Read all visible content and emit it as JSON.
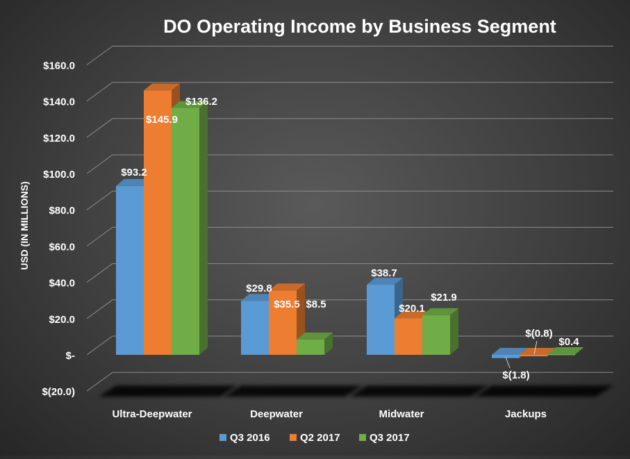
{
  "chart_data": {
    "type": "bar",
    "title": "DO Operating Income by Business Segment",
    "ylabel": "USD (IN MILLIONS)",
    "xlabel": "",
    "categories": [
      "Ultra-Deepwater",
      "Deepwater",
      "Midwater",
      "Jackups"
    ],
    "series": [
      {
        "name": "Q3 2016",
        "color": "#5b9bd5",
        "values": [
          93.2,
          29.8,
          38.7,
          -1.8
        ],
        "labels": [
          "$93.2",
          "$29.8",
          "$38.7",
          "$(1.8)"
        ]
      },
      {
        "name": "Q2 2017",
        "color": "#ed7d31",
        "values": [
          145.9,
          35.5,
          20.1,
          -0.8
        ],
        "labels": [
          "$145.9",
          "$35.5",
          "$20.1",
          "$(0.8)"
        ]
      },
      {
        "name": "Q3 2017",
        "color": "#70ad47",
        "values": [
          136.2,
          8.5,
          21.9,
          0.4
        ],
        "labels": [
          "$136.2",
          "$8.5",
          "$21.9",
          "$0.4"
        ]
      }
    ],
    "ylim": [
      -20,
      160
    ],
    "yticks": [
      {
        "value": 160,
        "label": "$160.0"
      },
      {
        "value": 140,
        "label": "$140.0"
      },
      {
        "value": 120,
        "label": "$120.0"
      },
      {
        "value": 100,
        "label": "$100.0"
      },
      {
        "value": 80,
        "label": "$80.0"
      },
      {
        "value": 60,
        "label": "$60.0"
      },
      {
        "value": 40,
        "label": "$40.0"
      },
      {
        "value": 20,
        "label": "$20.0"
      },
      {
        "value": 0,
        "label": "$-"
      },
      {
        "value": -20,
        "label": "$(20.0)"
      }
    ],
    "grid": true,
    "style": "3d-clustered-column",
    "legend_position": "bottom"
  }
}
